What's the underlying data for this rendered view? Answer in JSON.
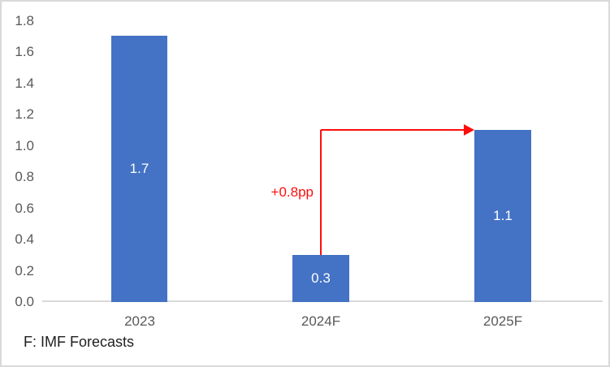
{
  "chart_data": {
    "type": "bar",
    "title": "",
    "categories": [
      "2023",
      "2024F",
      "2025F"
    ],
    "values": [
      1.7,
      0.3,
      1.1
    ],
    "bar_labels": [
      "1.7",
      "0.3",
      "1.1"
    ],
    "y_ticks": [
      "1.8",
      "1.6",
      "1.4",
      "1.2",
      "1.0",
      "0.8",
      "0.6",
      "0.4",
      "0.2",
      "0.0"
    ],
    "ylim": [
      0,
      1.8
    ],
    "grid": false,
    "legend": false,
    "annotation": {
      "text": "+0.8pp",
      "from_category": "2024F",
      "to_category": "2025F",
      "meaning": "increase of 0.8 percentage points from 2024F to 2025F"
    },
    "footnote": "F: IMF Forecasts"
  },
  "colors": {
    "bar": "#4472C4",
    "bar_label_text": "#FFFFFF",
    "axis_line": "#D9D9D9",
    "tick_text": "#595959",
    "annotation_red": "#FF0D0D",
    "footnote_text": "#1F1F1F",
    "background": "#FFFFFF",
    "border": "#D9D9D9"
  }
}
